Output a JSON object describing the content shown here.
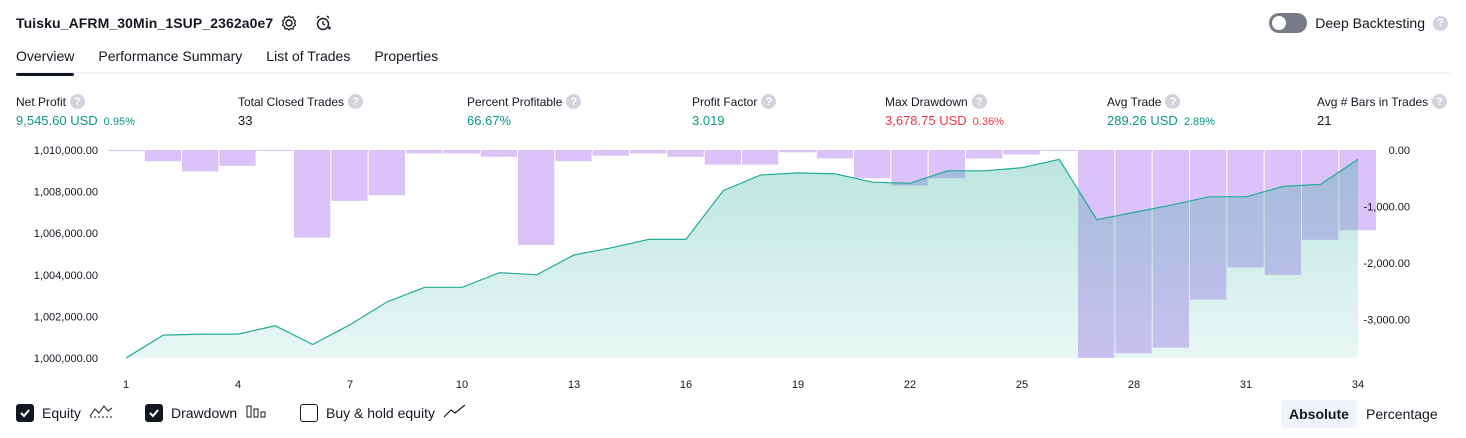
{
  "header": {
    "title": "Tuisku_AFRM_30Min_1SUP_2362a0e7",
    "settings_icon": "gear-icon",
    "alert_icon": "alarm-clock-plus-icon",
    "deep_backtesting_label": "Deep Backtesting",
    "deep_backtesting_on": false,
    "help_glyph": "?"
  },
  "tabs": [
    {
      "label": "Overview",
      "active": true
    },
    {
      "label": "Performance Summary",
      "active": false
    },
    {
      "label": "List of Trades",
      "active": false
    },
    {
      "label": "Properties",
      "active": false
    }
  ],
  "stats": [
    {
      "label": "Net Profit",
      "value": "9,545.60 USD",
      "pct": "0.95%",
      "color": "green"
    },
    {
      "label": "Total Closed Trades",
      "value": "33",
      "pct": "",
      "color": "dark"
    },
    {
      "label": "Percent Profitable",
      "value": "66.67%",
      "pct": "",
      "color": "green"
    },
    {
      "label": "Profit Factor",
      "value": "3.019",
      "pct": "",
      "color": "green"
    },
    {
      "label": "Max Drawdown",
      "value": "3,678.75 USD",
      "pct": "0.36%",
      "color": "red"
    },
    {
      "label": "Avg Trade",
      "value": "289.26 USD",
      "pct": "2.89%",
      "color": "green"
    },
    {
      "label": "Avg # Bars in Trades",
      "value": "21",
      "pct": "",
      "color": "dark"
    }
  ],
  "chart_data": {
    "type": "area",
    "x": [
      1,
      2,
      3,
      4,
      5,
      6,
      7,
      8,
      9,
      10,
      11,
      12,
      13,
      14,
      15,
      16,
      17,
      18,
      19,
      20,
      21,
      22,
      23,
      24,
      25,
      26,
      27,
      28,
      29,
      30,
      31,
      32,
      33,
      34
    ],
    "series": [
      {
        "name": "Equity",
        "axis": "left",
        "values": [
          1000000,
          1001100,
          1001150,
          1001150,
          1001550,
          1000650,
          1001600,
          1002700,
          1003400,
          1003400,
          1004100,
          1004000,
          1004950,
          1005300,
          1005700,
          1005700,
          1008050,
          1008800,
          1008900,
          1008850,
          1008450,
          1008400,
          1009000,
          1009000,
          1009150,
          1009550,
          1006650,
          1007000,
          1007350,
          1007750,
          1007750,
          1008250,
          1008350,
          1009550
        ]
      },
      {
        "name": "Drawdown",
        "axis": "right",
        "values": [
          -20,
          -200,
          -380,
          -280,
          0,
          -1550,
          -900,
          -800,
          -60,
          -60,
          -120,
          -1680,
          -200,
          -100,
          -60,
          -120,
          -260,
          -260,
          -40,
          -150,
          -500,
          -630,
          -500,
          -150,
          -80,
          0,
          -3680,
          -3600,
          -3500,
          -2650,
          -2080,
          -2210,
          -1590,
          -1420
        ]
      }
    ],
    "left_ticks": [
      "1,000,000.00",
      "1,002,000.00",
      "1,004,000.00",
      "1,006,000.00",
      "1,008,000.00",
      "1,010,000.00"
    ],
    "right_ticks": [
      "0.00",
      "-1,000.00",
      "-2,000.00",
      "-3,000.00"
    ],
    "x_ticks": [
      "1",
      "4",
      "7",
      "10",
      "13",
      "16",
      "19",
      "22",
      "25",
      "28",
      "31",
      "34"
    ],
    "left_ylim": [
      1000000,
      1010000
    ],
    "right_ylim": [
      -3700,
      0
    ],
    "equity_color": "#22ab94",
    "drawdown_color": "#c39bf7"
  },
  "legend": [
    {
      "label": "Equity",
      "checked": true,
      "icon": "line-chart-icon"
    },
    {
      "label": "Drawdown",
      "checked": true,
      "icon": "bar-chart-icon"
    },
    {
      "label": "Buy & hold equity",
      "checked": false,
      "icon": "trend-line-icon"
    }
  ],
  "view_modes": [
    {
      "label": "Absolute",
      "active": true
    },
    {
      "label": "Percentage",
      "active": false
    }
  ]
}
